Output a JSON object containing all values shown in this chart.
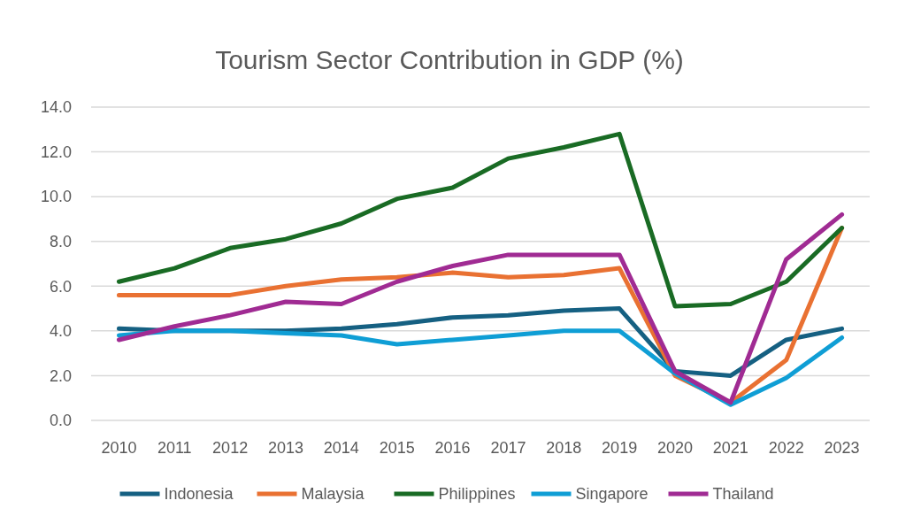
{
  "chart_data": {
    "type": "line",
    "title": "Tourism Sector Contribution in GDP (%)",
    "categories": [
      "2010",
      "2011",
      "2012",
      "2013",
      "2014",
      "2015",
      "2016",
      "2017",
      "2018",
      "2019",
      "2020",
      "2021",
      "2022",
      "2023"
    ],
    "series": [
      {
        "name": "Indonesia",
        "color": "#156082",
        "values": [
          4.1,
          4.0,
          4.0,
          4.0,
          4.1,
          4.3,
          4.6,
          4.7,
          4.9,
          5.0,
          2.2,
          2.0,
          3.6,
          4.1
        ]
      },
      {
        "name": "Malaysia",
        "color": "#e97132",
        "values": [
          5.6,
          5.6,
          5.6,
          6.0,
          6.3,
          6.4,
          6.6,
          6.4,
          6.5,
          6.8,
          2.0,
          0.8,
          2.7,
          8.6
        ]
      },
      {
        "name": "Philippines",
        "color": "#196b24",
        "values": [
          6.2,
          6.8,
          7.7,
          8.1,
          8.8,
          9.9,
          10.4,
          11.7,
          12.2,
          12.8,
          5.1,
          5.2,
          6.2,
          8.6
        ]
      },
      {
        "name": "Singapore",
        "color": "#0f9ed5",
        "values": [
          3.8,
          4.0,
          4.0,
          3.9,
          3.8,
          3.4,
          3.6,
          3.8,
          4.0,
          4.0,
          2.1,
          0.7,
          1.9,
          3.7
        ]
      },
      {
        "name": "Thailand",
        "color": "#a02b93",
        "values": [
          3.6,
          4.2,
          4.7,
          5.3,
          5.2,
          6.2,
          6.9,
          7.4,
          7.4,
          7.4,
          2.2,
          0.8,
          7.2,
          9.2
        ]
      }
    ],
    "ylim": [
      0,
      14
    ],
    "yticks": [
      {
        "value": 0,
        "label": "0.0"
      },
      {
        "value": 2,
        "label": "2.0"
      },
      {
        "value": 4,
        "label": "4.0"
      },
      {
        "value": 6,
        "label": "6.0"
      },
      {
        "value": 8,
        "label": "8.0"
      },
      {
        "value": 10,
        "label": "10.0"
      },
      {
        "value": 12,
        "label": "12.0"
      },
      {
        "value": 14,
        "label": "14.0"
      }
    ],
    "grid": "y",
    "legend": "bottom",
    "marker": "none",
    "line_style": "solid"
  }
}
